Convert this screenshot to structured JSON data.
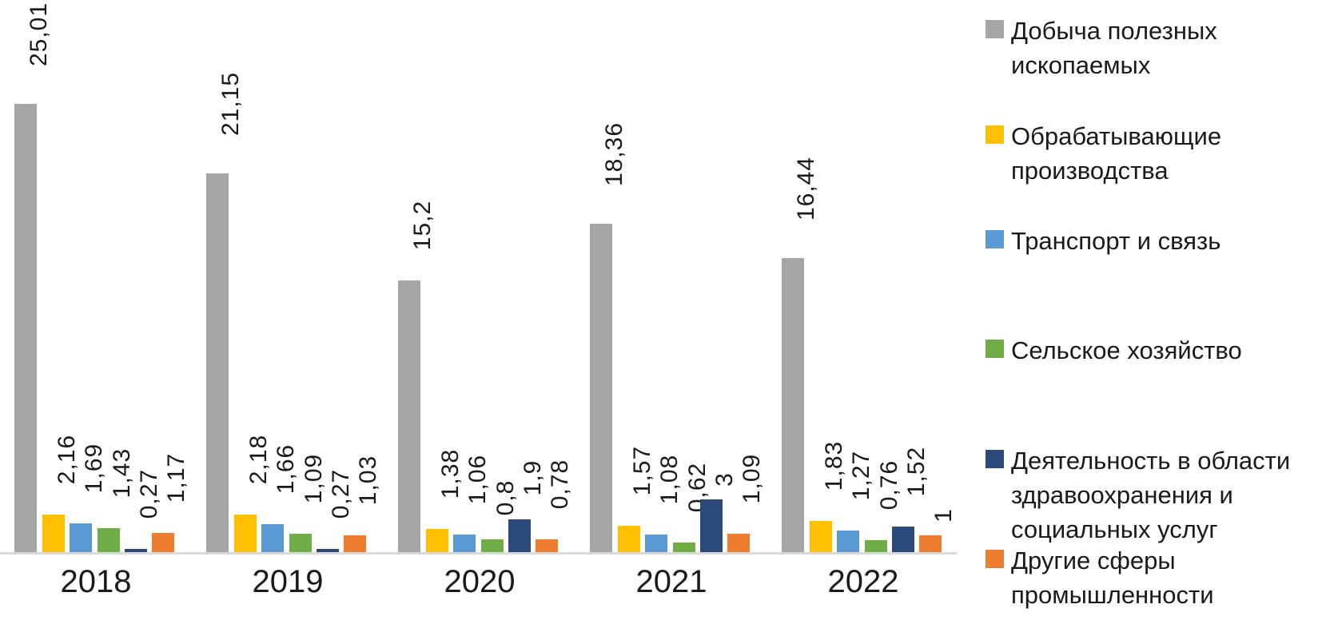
{
  "chart_data": {
    "type": "bar",
    "title": "",
    "xlabel": "",
    "ylabel": "",
    "categories": [
      "2018",
      "2019",
      "2020",
      "2021",
      "2022"
    ],
    "series": [
      {
        "name": "Добыча полезных ископаемых",
        "color": "#a6a6a6",
        "values": [
          25.01,
          21.15,
          15.2,
          18.36,
          16.44
        ],
        "labels": [
          "25,01",
          "21,15",
          "15,2",
          "18,36",
          "16,44"
        ]
      },
      {
        "name": "Обрабатывающие производства",
        "color": "#ffc000",
        "values": [
          2.16,
          2.18,
          1.38,
          1.57,
          1.83
        ],
        "labels": [
          "2,16",
          "2,18",
          "1,38",
          "1,57",
          "1,83"
        ]
      },
      {
        "name": "Транспорт и связь",
        "color": "#5b9bd5",
        "values": [
          1.69,
          1.66,
          1.06,
          1.08,
          1.27
        ],
        "labels": [
          "1,69",
          "1,66",
          "1,06",
          "1,08",
          "1,27"
        ]
      },
      {
        "name": "Сельское хозяйство",
        "color": "#70ad47",
        "values": [
          1.43,
          1.09,
          0.8,
          0.62,
          0.76
        ],
        "labels": [
          "1,43",
          "1,09",
          "0,8",
          "0,62",
          "0,76"
        ]
      },
      {
        "name": "Деятельность в области здравоохранения и социальных услуг",
        "color": "#2d4a7d",
        "values": [
          0.27,
          0.27,
          1.9,
          3,
          1.52
        ],
        "labels": [
          "0,27",
          "0,27",
          "1,9",
          "3",
          "1,52"
        ]
      },
      {
        "name": "Другие сферы промышленности",
        "color": "#ed7d31",
        "values": [
          1.17,
          1.03,
          0.78,
          1.09,
          1
        ],
        "labels": [
          "1,17",
          "1,03",
          "0,78",
          "1,09",
          "1"
        ]
      }
    ],
    "ylim": [
      0,
      27
    ],
    "grid": false,
    "legend_position": "right",
    "axis_color": "#d9d9d9",
    "data_label_rotation": 90
  }
}
